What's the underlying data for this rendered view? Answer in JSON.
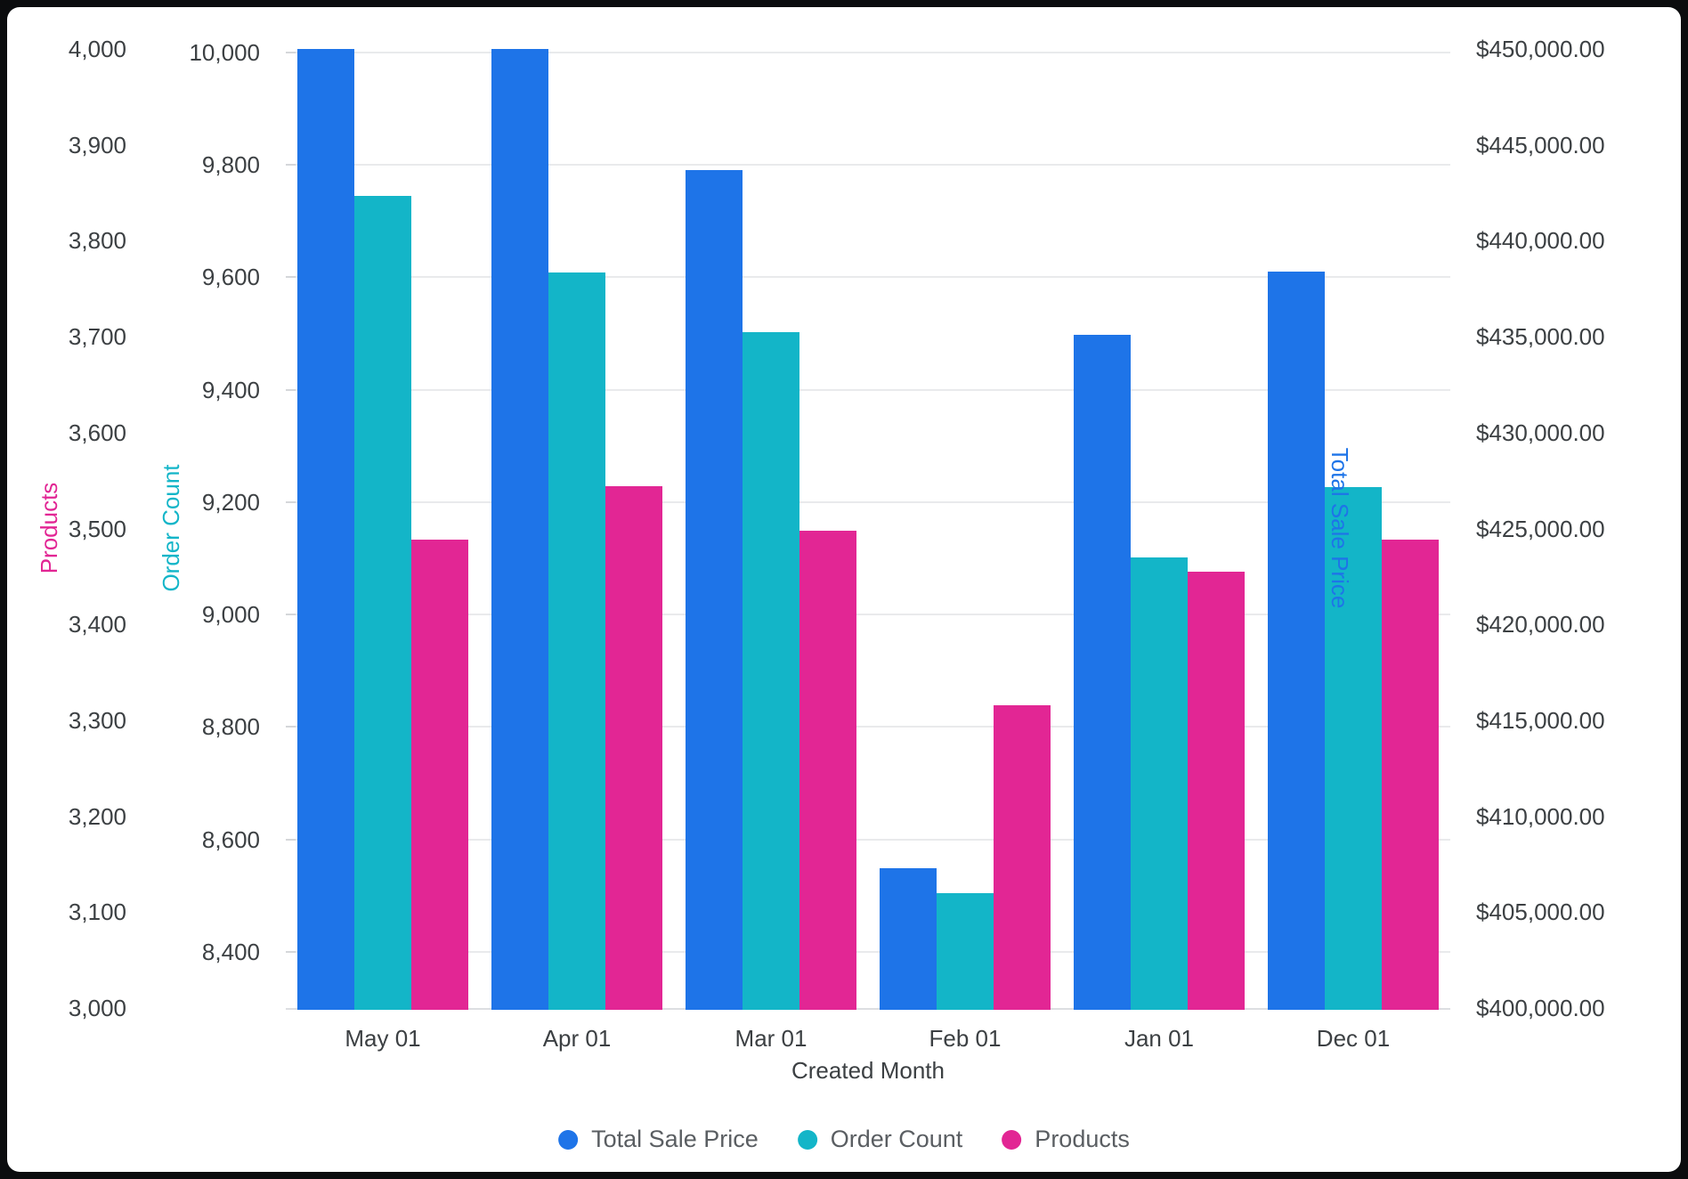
{
  "colors": {
    "blue": "#1E74E8",
    "teal": "#13B5C8",
    "magenta": "#E22694",
    "gridline": "#E9EAEC",
    "axis_line": "#DDDEE1",
    "tick_text": "#3C4043",
    "legend_text": "#5A5E62",
    "frame": "#0B0C0E",
    "card": "#FFFFFF"
  },
  "chart_data": {
    "type": "bar",
    "title": "",
    "xlabel": "Created Month",
    "categories": [
      "May 01",
      "Apr 01",
      "Mar 01",
      "Feb 01",
      "Jan 01",
      "Dec 01"
    ],
    "grid": true,
    "legend_position": "bottom",
    "series": [
      {
        "name": "Total Sale Price",
        "axis": "price",
        "color": "#1E74E8",
        "values": [
          450000,
          450000,
          443700,
          407300,
          435100,
          438400
        ]
      },
      {
        "name": "Order Count",
        "axis": "order",
        "color": "#13B5C8",
        "values": [
          9745,
          9609,
          9503,
          8505,
          9102,
          9226
        ]
      },
      {
        "name": "Products",
        "axis": "products",
        "color": "#E22694",
        "values": [
          3488,
          3544,
          3498,
          3316,
          3455,
          3488
        ]
      }
    ],
    "axes": {
      "products": {
        "title": "Products",
        "title_color": "#E22694",
        "side": "left-outer",
        "min": 3000,
        "max": 4000,
        "tick_values": [
          4000,
          3900,
          3800,
          3700,
          3600,
          3500,
          3400,
          3300,
          3200,
          3100,
          3000
        ],
        "tick_labels": [
          "4,000",
          "3,900",
          "3,800",
          "3,700",
          "3,600",
          "3,500",
          "3,400",
          "3,300",
          "3,200",
          "3,100",
          "3,000"
        ]
      },
      "order": {
        "title": "Order Count",
        "title_color": "#13B5C8",
        "side": "left-inner",
        "min": 8300,
        "max": 10006,
        "gridlines": true,
        "tick_values": [
          10000,
          9800,
          9600,
          9400,
          9200,
          9000,
          8800,
          8600,
          8400
        ],
        "tick_labels": [
          "10,000",
          "9,800",
          "9,600",
          "9,400",
          "9,200",
          "9,000",
          "8,800",
          "8,600",
          "8,400"
        ]
      },
      "price": {
        "title": "Total Sale Price",
        "title_color": "#1E74E8",
        "side": "right",
        "min": 400000,
        "max": 450000,
        "tick_values": [
          450000,
          445000,
          440000,
          435000,
          430000,
          425000,
          420000,
          415000,
          410000,
          405000,
          400000
        ],
        "tick_labels": [
          "$450,000.00",
          "$445,000.00",
          "$440,000.00",
          "$435,000.00",
          "$430,000.00",
          "$425,000.00",
          "$420,000.00",
          "$415,000.00",
          "$410,000.00",
          "$405,000.00",
          "$400,000.00"
        ]
      }
    },
    "legend": [
      "Total Sale Price",
      "Order Count",
      "Products"
    ]
  }
}
